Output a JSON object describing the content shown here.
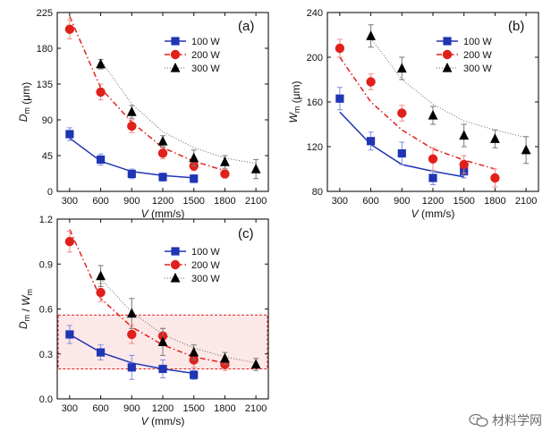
{
  "watermark": "材料学网",
  "colors": {
    "s100": "#1f35b3",
    "s200": "#e0201b",
    "s300": "#000000",
    "box": "#e0201b",
    "boxfill": "#fde8e8"
  },
  "chart_data": [
    {
      "panel": "(a)",
      "type": "scatter",
      "xlabel": "V (mm/s)",
      "ylabel": "Dm (μm)",
      "xlim": [
        180,
        2220
      ],
      "ylim": [
        0,
        225
      ],
      "xticks": [
        300,
        600,
        900,
        1200,
        1500,
        1800,
        2100
      ],
      "yticks": [
        0,
        45,
        90,
        135,
        180,
        225
      ],
      "legend": "right",
      "series": [
        {
          "name": "100 W",
          "marker": "square",
          "x": [
            300,
            600,
            900,
            1200,
            1500
          ],
          "y": [
            72,
            40,
            22,
            18,
            16
          ],
          "err": [
            8,
            7,
            6,
            5,
            5
          ],
          "fit": {
            "style": "solid",
            "x": [
              300,
              600,
              900,
              1200,
              1500
            ],
            "y": [
              67,
              38,
              25,
              20,
              17
            ]
          }
        },
        {
          "name": "200 W",
          "marker": "circle",
          "x": [
            300,
            600,
            900,
            1200,
            1500,
            1800
          ],
          "y": [
            204,
            125,
            82,
            48,
            32,
            22
          ],
          "err": [
            12,
            10,
            8,
            7,
            6,
            5
          ],
          "fit": {
            "style": "dashdot",
            "x": [
              300,
              600,
              900,
              1200,
              1500,
              1800
            ],
            "y": [
              220,
              130,
              87,
              55,
              38,
              26
            ]
          }
        },
        {
          "name": "300 W",
          "marker": "triangle",
          "x": [
            600,
            900,
            1200,
            1500,
            1800,
            2100
          ],
          "y": [
            160,
            100,
            63,
            42,
            37,
            28
          ],
          "err": [
            6,
            8,
            7,
            10,
            8,
            12
          ],
          "fit": {
            "style": "dotted",
            "x": [
              600,
              900,
              1200,
              1500,
              1800,
              2100
            ],
            "y": [
              165,
              110,
              75,
              55,
              42,
              35
            ]
          }
        }
      ]
    },
    {
      "panel": "(b)",
      "type": "scatter",
      "xlabel": "V (mm/s)",
      "ylabel": "Wm (μm)",
      "xlim": [
        180,
        2220
      ],
      "ylim": [
        80,
        240
      ],
      "xticks": [
        300,
        600,
        900,
        1200,
        1500,
        1800,
        2100
      ],
      "yticks": [
        80,
        120,
        160,
        200,
        240
      ],
      "legend": "right",
      "series": [
        {
          "name": "100 W",
          "marker": "square",
          "x": [
            300,
            600,
            900,
            1200,
            1500
          ],
          "y": [
            163,
            125,
            114,
            92,
            98
          ],
          "err": [
            10,
            8,
            10,
            6,
            6
          ],
          "fit": {
            "style": "solid",
            "x": [
              300,
              600,
              900,
              1200,
              1500
            ],
            "y": [
              151,
              122,
              104,
              98,
              93
            ]
          }
        },
        {
          "name": "200 W",
          "marker": "circle",
          "x": [
            300,
            600,
            900,
            1200,
            1500,
            1800
          ],
          "y": [
            208,
            178,
            150,
            109,
            104,
            92
          ],
          "err": [
            8,
            7,
            7,
            10,
            8,
            8
          ],
          "fit": {
            "style": "dashdot",
            "x": [
              300,
              600,
              900,
              1200,
              1500,
              1800
            ],
            "y": [
              200,
              160,
              135,
              118,
              108,
              100
            ]
          }
        },
        {
          "name": "300 W",
          "marker": "triangle",
          "x": [
            600,
            900,
            1200,
            1500,
            1800,
            2100
          ],
          "y": [
            219,
            190,
            148,
            130,
            127,
            117
          ],
          "err": [
            10,
            10,
            8,
            10,
            8,
            12
          ],
          "fit": {
            "style": "dotted",
            "x": [
              600,
              900,
              1200,
              1500,
              1800,
              2100
            ],
            "y": [
              217,
              180,
              158,
              143,
              135,
              128
            ]
          }
        }
      ]
    },
    {
      "panel": "(c)",
      "type": "scatter",
      "xlabel": "V (mm/s)",
      "ylabel": "Dm / Wm",
      "xlim": [
        180,
        2220
      ],
      "ylim": [
        0,
        1.2
      ],
      "xticks": [
        300,
        600,
        900,
        1200,
        1500,
        1800,
        2100
      ],
      "yticks": [
        0.0,
        0.3,
        0.6,
        0.9,
        1.2
      ],
      "legend": "right",
      "region": {
        "x": [
          180,
          2220
        ],
        "y": [
          0.2,
          0.56
        ]
      },
      "series": [
        {
          "name": "100 W",
          "marker": "square",
          "x": [
            300,
            600,
            900,
            1200,
            1500
          ],
          "y": [
            0.43,
            0.31,
            0.21,
            0.2,
            0.16
          ],
          "err": [
            0.06,
            0.05,
            0.08,
            0.06,
            0.03
          ],
          "fit": {
            "style": "solid",
            "x": [
              300,
              600,
              900,
              1200,
              1500
            ],
            "y": [
              0.43,
              0.31,
              0.24,
              0.2,
              0.17
            ]
          }
        },
        {
          "name": "200 W",
          "marker": "circle",
          "x": [
            300,
            600,
            900,
            1200,
            1500,
            1800
          ],
          "y": [
            1.05,
            0.71,
            0.43,
            0.42,
            0.26,
            0.23
          ],
          "err": [
            0.07,
            0.06,
            0.06,
            0.05,
            0.05,
            0.04
          ],
          "fit": {
            "style": "dashdot",
            "x": [
              300,
              600,
              900,
              1200,
              1500,
              1800
            ],
            "y": [
              1.13,
              0.67,
              0.48,
              0.36,
              0.28,
              0.24
            ]
          }
        },
        {
          "name": "300 W",
          "marker": "triangle",
          "x": [
            600,
            900,
            1200,
            1500,
            1800,
            2100
          ],
          "y": [
            0.82,
            0.57,
            0.38,
            0.31,
            0.27,
            0.23
          ],
          "err": [
            0.07,
            0.1,
            0.09,
            0.05,
            0.04,
            0.04
          ],
          "fit": {
            "style": "dotted",
            "x": [
              600,
              900,
              1200,
              1500,
              1800,
              2100
            ],
            "y": [
              0.8,
              0.58,
              0.43,
              0.34,
              0.28,
              0.24
            ]
          }
        }
      ]
    }
  ]
}
